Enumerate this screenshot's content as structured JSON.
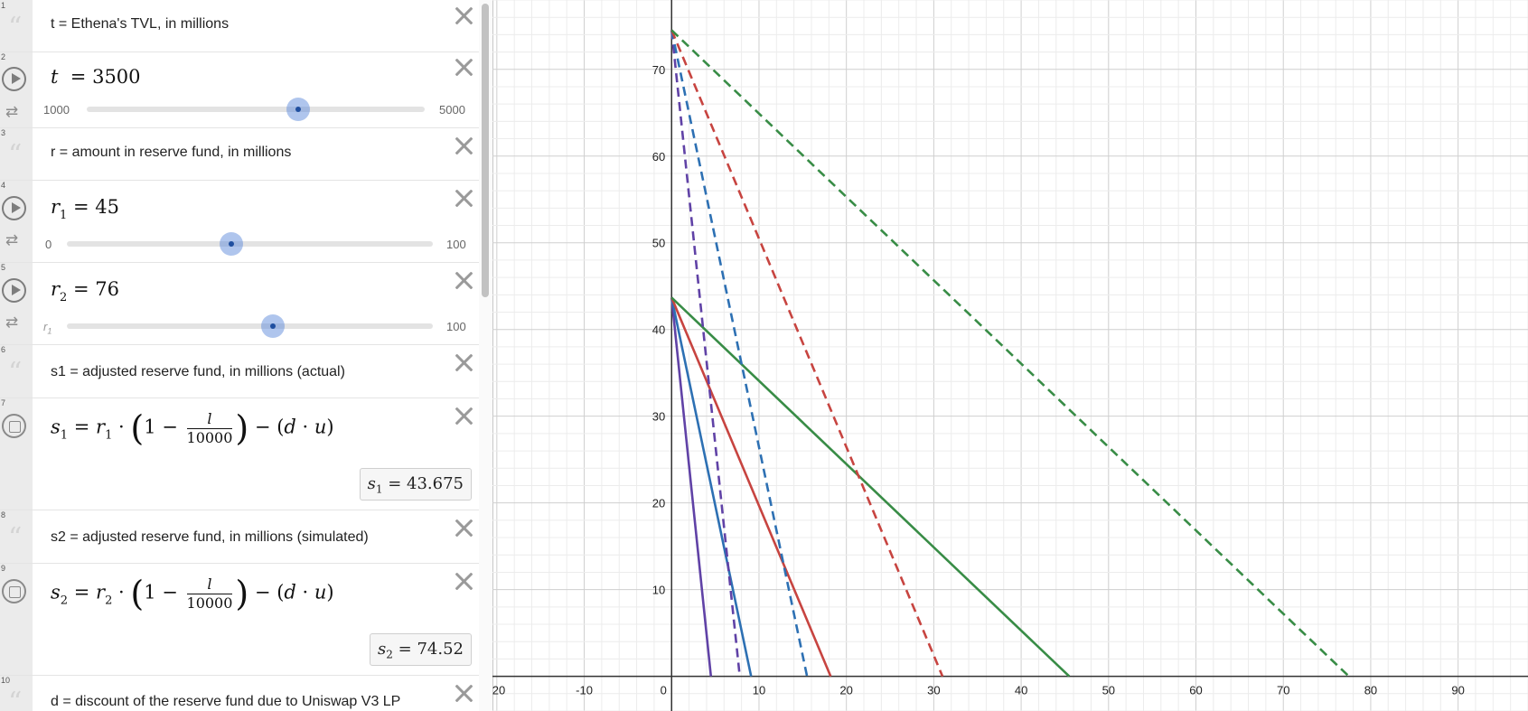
{
  "rows": [
    {
      "num": "1",
      "text": "t = Ethena's TVL, in millions"
    },
    {
      "num": "2",
      "var": "t",
      "value": "3500",
      "min": "1000",
      "max": "5000",
      "fraction": 0.625
    },
    {
      "num": "3",
      "text": "r = amount in reserve fund, in millions"
    },
    {
      "num": "4",
      "var": "r",
      "sub": "1",
      "value": "45",
      "min": "0",
      "max": "100",
      "fraction": 0.45
    },
    {
      "num": "5",
      "var": "r",
      "sub": "2",
      "value": "76",
      "min_var": "r",
      "min_sub": "1",
      "max": "100",
      "fraction": 0.56
    },
    {
      "num": "6",
      "text": "s1 = adjusted reserve fund, in millions (actual)"
    },
    {
      "num": "7",
      "lhs": "s",
      "lhs_sub": "1",
      "r": "r",
      "r_sub": "1",
      "num_l": "l",
      "den": "10000",
      "d": "d",
      "u": "u",
      "result_var": "s",
      "result_sub": "1",
      "result": "43.675"
    },
    {
      "num": "8",
      "text": "s2 = adjusted reserve fund, in millions (simulated)"
    },
    {
      "num": "9",
      "lhs": "s",
      "lhs_sub": "2",
      "r": "r",
      "r_sub": "2",
      "num_l": "l",
      "den": "10000",
      "d": "d",
      "u": "u",
      "result_var": "s",
      "result_sub": "2",
      "result": "74.52"
    },
    {
      "num": "10",
      "text": "d = discount of the reserve fund due to Uniswap V3 LP"
    }
  ],
  "graph": {
    "x_range": [
      -20.5,
      98
    ],
    "y_range": [
      -4,
      78
    ],
    "x_ticks": [
      "-20",
      "-10",
      "0",
      "10",
      "20",
      "30",
      "40",
      "50",
      "60",
      "70",
      "80",
      "90"
    ],
    "y_ticks": [
      "10",
      "20",
      "30",
      "40",
      "50",
      "60",
      "70"
    ],
    "series": [
      {
        "name": "",
        "color": "#6042a6",
        "style": "solid",
        "x": [
          0,
          4.5
        ],
        "y": [
          43.675,
          0
        ]
      },
      {
        "name": "",
        "color": "#2d70b3",
        "style": "solid",
        "x": [
          0,
          9.1
        ],
        "y": [
          43.675,
          0
        ]
      },
      {
        "name": "",
        "color": "#c74440",
        "style": "solid",
        "x": [
          0,
          18.2
        ],
        "y": [
          43.675,
          0
        ]
      },
      {
        "name": "",
        "color": "#388c46",
        "style": "solid",
        "x": [
          0,
          45.5
        ],
        "y": [
          43.675,
          0
        ]
      },
      {
        "name": "",
        "color": "#6042a6",
        "style": "dashed",
        "x": [
          0,
          7.8
        ],
        "y": [
          74.52,
          0
        ]
      },
      {
        "name": "",
        "color": "#2d70b3",
        "style": "dashed",
        "x": [
          0,
          15.5
        ],
        "y": [
          74.52,
          0
        ]
      },
      {
        "name": "",
        "color": "#c74440",
        "style": "dashed",
        "x": [
          0,
          31
        ],
        "y": [
          74.52,
          0
        ]
      },
      {
        "name": "",
        "color": "#388c46",
        "style": "dashed",
        "x": [
          0,
          77.5
        ],
        "y": [
          74.52,
          0
        ]
      }
    ]
  }
}
